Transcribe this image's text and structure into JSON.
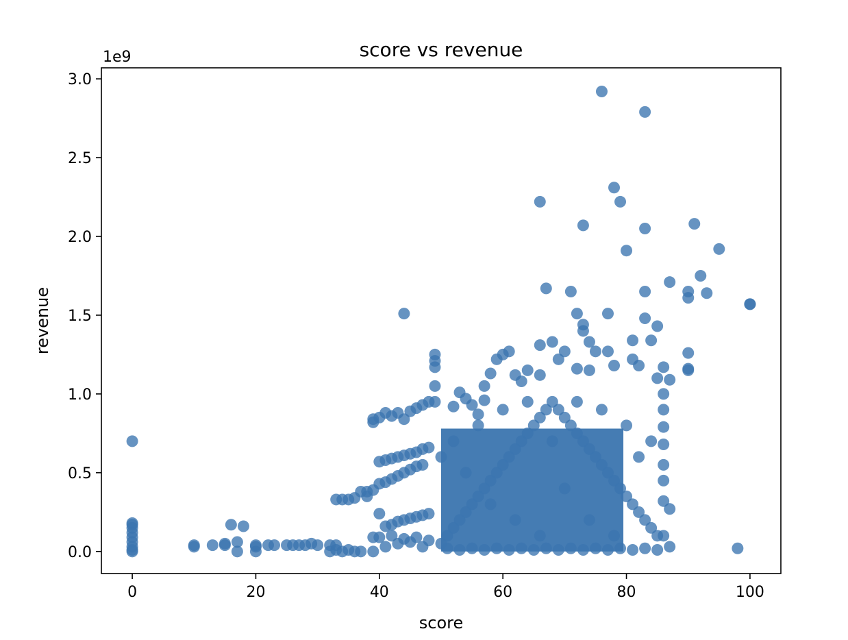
{
  "chart_data": {
    "type": "scatter",
    "title": "score vs revenue",
    "xlabel": "score",
    "ylabel": "revenue",
    "y_offset_text": "1e9",
    "xlim": [
      -5,
      105
    ],
    "ylim": [
      -0.14,
      3.07
    ],
    "x_ticks": [
      0,
      20,
      40,
      60,
      80,
      100
    ],
    "y_ticks": [
      0.0,
      0.5,
      1.0,
      1.5,
      2.0,
      2.5,
      3.0
    ],
    "x_tick_labels": [
      "0",
      "20",
      "40",
      "60",
      "80",
      "100"
    ],
    "y_tick_labels": [
      "0.0",
      "0.5",
      "1.0",
      "1.5",
      "2.0",
      "2.5",
      "3.0"
    ],
    "grid": false,
    "legend": "none",
    "marker_color": "#3b75af",
    "series": [
      {
        "points": [
          [
            0,
            0.7
          ],
          [
            0,
            0.18
          ],
          [
            0,
            0.17
          ],
          [
            0,
            0.15
          ],
          [
            0,
            0.12
          ],
          [
            0,
            0.09
          ],
          [
            0,
            0.06
          ],
          [
            0,
            0.03
          ],
          [
            0,
            0.01
          ],
          [
            0,
            0.0
          ],
          [
            10,
            0.04
          ],
          [
            10,
            0.03
          ],
          [
            13,
            0.04
          ],
          [
            15,
            0.05
          ],
          [
            15,
            0.04
          ],
          [
            16,
            0.17
          ],
          [
            17,
            0.06
          ],
          [
            17,
            0.0
          ],
          [
            18,
            0.16
          ],
          [
            20,
            0.04
          ],
          [
            20,
            0.03
          ],
          [
            20,
            0.0
          ],
          [
            22,
            0.04
          ],
          [
            23,
            0.04
          ],
          [
            25,
            0.04
          ],
          [
            26,
            0.04
          ],
          [
            27,
            0.04
          ],
          [
            28,
            0.04
          ],
          [
            29,
            0.05
          ],
          [
            30,
            0.04
          ],
          [
            32,
            0.04
          ],
          [
            32,
            0.0
          ],
          [
            33,
            0.04
          ],
          [
            33,
            0.01
          ],
          [
            34,
            0.0
          ],
          [
            35,
            0.01
          ],
          [
            36,
            0.0
          ],
          [
            37,
            0.0
          ],
          [
            33,
            0.33
          ],
          [
            34,
            0.33
          ],
          [
            35,
            0.33
          ],
          [
            36,
            0.34
          ],
          [
            37,
            0.38
          ],
          [
            38,
            0.38
          ],
          [
            39,
            0.39
          ],
          [
            38,
            0.35
          ],
          [
            39,
            0.84
          ],
          [
            39,
            0.82
          ],
          [
            40,
            0.85
          ],
          [
            41,
            0.88
          ],
          [
            42,
            0.86
          ],
          [
            43,
            0.88
          ],
          [
            44,
            0.84
          ],
          [
            45,
            0.89
          ],
          [
            46,
            0.91
          ],
          [
            47,
            0.93
          ],
          [
            48,
            0.95
          ],
          [
            49,
            0.95
          ],
          [
            40,
            0.57
          ],
          [
            41,
            0.58
          ],
          [
            42,
            0.59
          ],
          [
            43,
            0.6
          ],
          [
            44,
            0.61
          ],
          [
            45,
            0.62
          ],
          [
            46,
            0.63
          ],
          [
            47,
            0.65
          ],
          [
            48,
            0.66
          ],
          [
            40,
            0.43
          ],
          [
            41,
            0.44
          ],
          [
            42,
            0.46
          ],
          [
            43,
            0.48
          ],
          [
            44,
            0.5
          ],
          [
            45,
            0.52
          ],
          [
            46,
            0.54
          ],
          [
            47,
            0.55
          ],
          [
            40,
            0.24
          ],
          [
            41,
            0.16
          ],
          [
            42,
            0.17
          ],
          [
            43,
            0.19
          ],
          [
            44,
            0.2
          ],
          [
            45,
            0.21
          ],
          [
            46,
            0.22
          ],
          [
            47,
            0.23
          ],
          [
            48,
            0.24
          ],
          [
            39,
            0.09
          ],
          [
            40,
            0.09
          ],
          [
            41,
            0.03
          ],
          [
            42,
            0.1
          ],
          [
            43,
            0.05
          ],
          [
            44,
            0.08
          ],
          [
            45,
            0.06
          ],
          [
            46,
            0.09
          ],
          [
            47,
            0.03
          ],
          [
            48,
            0.07
          ],
          [
            39,
            0.0
          ],
          [
            44,
            1.51
          ],
          [
            49,
            1.25
          ],
          [
            49,
            1.21
          ],
          [
            49,
            1.17
          ],
          [
            49,
            1.05
          ],
          [
            76,
            2.92
          ],
          [
            83,
            2.79
          ],
          [
            78,
            2.31
          ],
          [
            66,
            2.22
          ],
          [
            79,
            2.22
          ],
          [
            73,
            2.07
          ],
          [
            83,
            2.05
          ],
          [
            91,
            2.08
          ],
          [
            80,
            1.91
          ],
          [
            95,
            1.92
          ],
          [
            92,
            1.75
          ],
          [
            87,
            1.71
          ],
          [
            67,
            1.67
          ],
          [
            71,
            1.65
          ],
          [
            83,
            1.65
          ],
          [
            90,
            1.65
          ],
          [
            93,
            1.64
          ],
          [
            90,
            1.61
          ],
          [
            100,
            1.57
          ],
          [
            100,
            1.57
          ],
          [
            72,
            1.51
          ],
          [
            77,
            1.51
          ],
          [
            83,
            1.48
          ],
          [
            73,
            1.44
          ],
          [
            85,
            1.43
          ],
          [
            73,
            1.4
          ],
          [
            74,
            1.33
          ],
          [
            68,
            1.33
          ],
          [
            66,
            1.31
          ],
          [
            81,
            1.34
          ],
          [
            84,
            1.34
          ],
          [
            75,
            1.27
          ],
          [
            77,
            1.27
          ],
          [
            70,
            1.27
          ],
          [
            61,
            1.27
          ],
          [
            60,
            1.25
          ],
          [
            90,
            1.26
          ],
          [
            59,
            1.22
          ],
          [
            69,
            1.22
          ],
          [
            78,
            1.18
          ],
          [
            81,
            1.22
          ],
          [
            82,
            1.18
          ],
          [
            86,
            1.17
          ],
          [
            90,
            1.16
          ],
          [
            90,
            1.15
          ],
          [
            64,
            1.15
          ],
          [
            72,
            1.16
          ],
          [
            74,
            1.15
          ],
          [
            66,
            1.12
          ],
          [
            58,
            1.13
          ],
          [
            62,
            1.12
          ],
          [
            57,
            1.05
          ],
          [
            63,
            1.08
          ],
          [
            87,
            1.09
          ],
          [
            85,
            1.1
          ],
          [
            53,
            1.01
          ],
          [
            54,
            0.97
          ],
          [
            55,
            0.93
          ],
          [
            52,
            0.92
          ],
          [
            56,
            0.87
          ],
          [
            57,
            0.96
          ],
          [
            86,
            1.0
          ],
          [
            86,
            0.9
          ],
          [
            98,
            0.02
          ],
          [
            87,
            0.03
          ],
          [
            87,
            0.27
          ],
          [
            86,
            0.32
          ],
          [
            86,
            0.1
          ],
          [
            86,
            0.45
          ],
          [
            86,
            0.55
          ],
          [
            86,
            0.68
          ],
          [
            86,
            0.79
          ],
          [
            50,
            0.05
          ],
          [
            51,
            0.1
          ],
          [
            52,
            0.15
          ],
          [
            53,
            0.2
          ],
          [
            54,
            0.25
          ],
          [
            55,
            0.3
          ],
          [
            56,
            0.35
          ],
          [
            57,
            0.4
          ],
          [
            58,
            0.45
          ],
          [
            59,
            0.5
          ],
          [
            60,
            0.55
          ],
          [
            61,
            0.6
          ],
          [
            62,
            0.65
          ],
          [
            63,
            0.7
          ],
          [
            64,
            0.75
          ],
          [
            65,
            0.8
          ],
          [
            66,
            0.85
          ],
          [
            67,
            0.9
          ],
          [
            68,
            0.95
          ],
          [
            69,
            0.9
          ],
          [
            70,
            0.85
          ],
          [
            71,
            0.8
          ],
          [
            72,
            0.75
          ],
          [
            73,
            0.7
          ],
          [
            74,
            0.65
          ],
          [
            75,
            0.6
          ],
          [
            76,
            0.55
          ],
          [
            77,
            0.5
          ],
          [
            78,
            0.45
          ],
          [
            79,
            0.4
          ],
          [
            80,
            0.35
          ],
          [
            81,
            0.3
          ],
          [
            82,
            0.25
          ],
          [
            83,
            0.2
          ],
          [
            84,
            0.15
          ],
          [
            85,
            0.1
          ],
          [
            50,
            0.6
          ],
          [
            52,
            0.7
          ],
          [
            54,
            0.5
          ],
          [
            56,
            0.8
          ],
          [
            58,
            0.3
          ],
          [
            60,
            0.9
          ],
          [
            62,
            0.2
          ],
          [
            64,
            0.95
          ],
          [
            66,
            0.1
          ],
          [
            68,
            0.7
          ],
          [
            70,
            0.4
          ],
          [
            72,
            0.95
          ],
          [
            74,
            0.2
          ],
          [
            76,
            0.9
          ],
          [
            78,
            0.1
          ],
          [
            80,
            0.8
          ],
          [
            82,
            0.6
          ],
          [
            84,
            0.7
          ],
          [
            51,
            0.02
          ],
          [
            53,
            0.01
          ],
          [
            55,
            0.02
          ],
          [
            57,
            0.01
          ],
          [
            59,
            0.02
          ],
          [
            61,
            0.01
          ],
          [
            63,
            0.02
          ],
          [
            65,
            0.01
          ],
          [
            67,
            0.02
          ],
          [
            69,
            0.01
          ],
          [
            71,
            0.02
          ],
          [
            73,
            0.01
          ],
          [
            75,
            0.02
          ],
          [
            77,
            0.01
          ],
          [
            79,
            0.02
          ],
          [
            81,
            0.01
          ],
          [
            83,
            0.02
          ],
          [
            85,
            0.01
          ]
        ]
      }
    ]
  }
}
